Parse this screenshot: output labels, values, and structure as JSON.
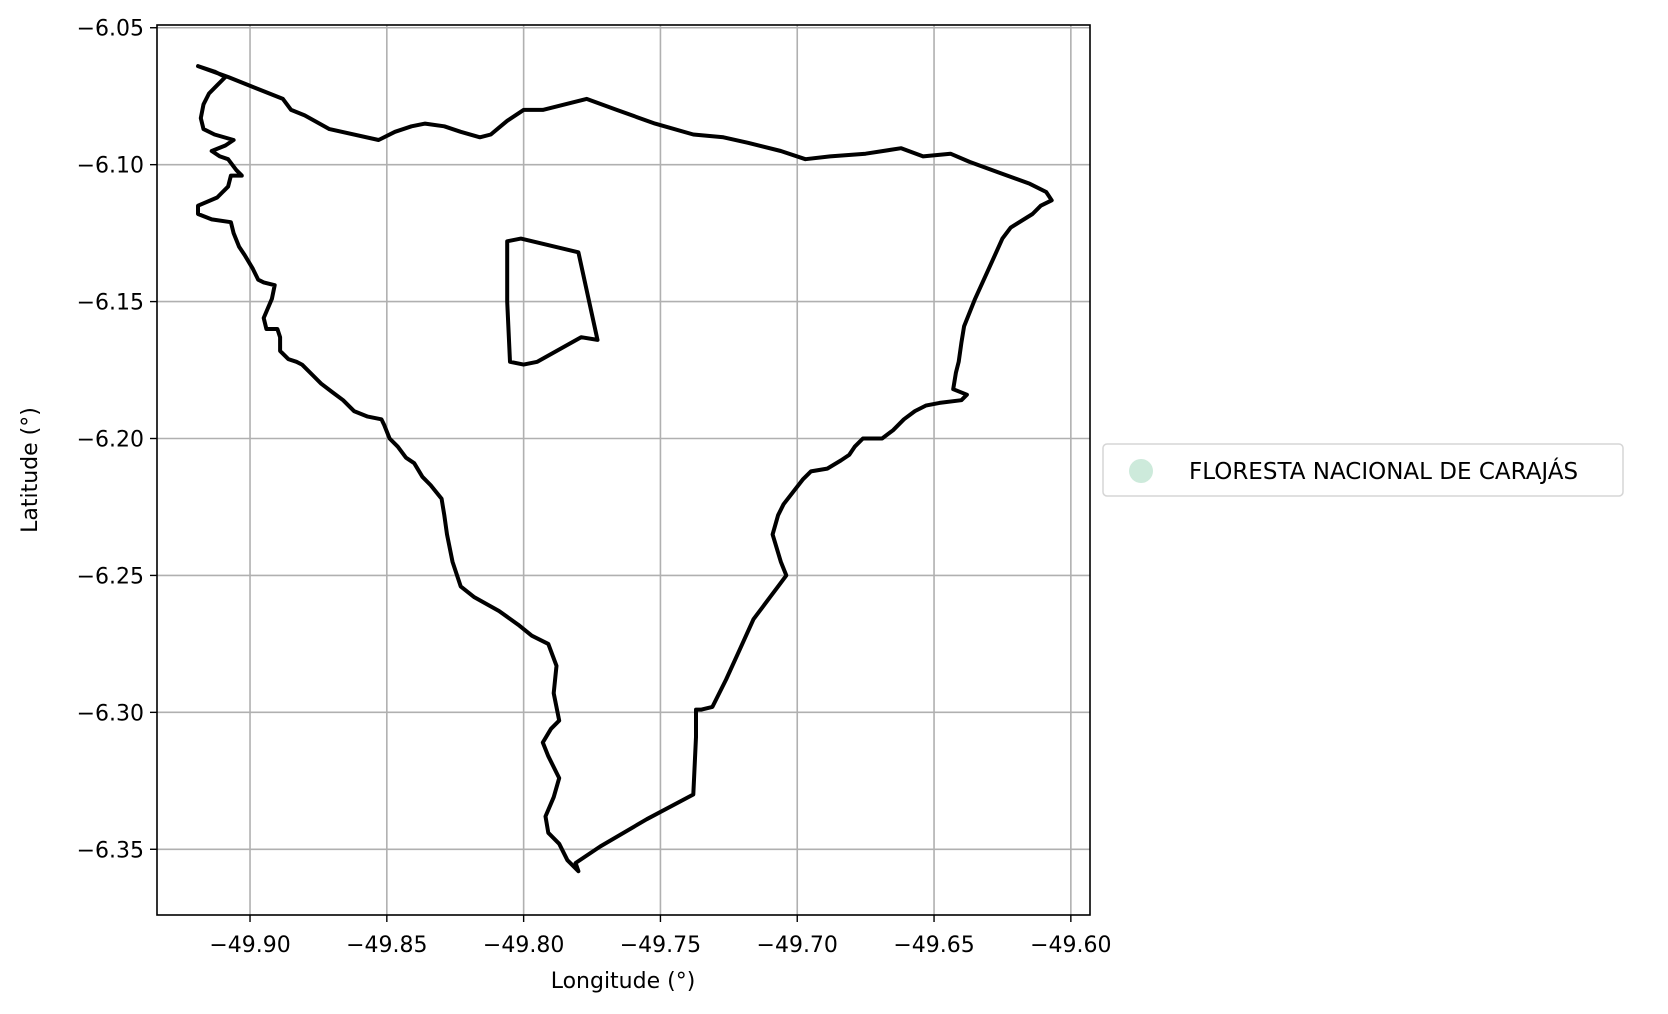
{
  "chart_data": {
    "type": "map",
    "xlabel": "Longitude (°)",
    "ylabel": "Latitude (°)",
    "xlim": [
      -49.934,
      -49.593
    ],
    "ylim": [
      -6.374,
      -6.049
    ],
    "grid": true,
    "x_ticks": [
      -49.9,
      -49.85,
      -49.8,
      -49.75,
      -49.7,
      -49.65,
      -49.6
    ],
    "y_ticks": [
      -6.05,
      -6.1,
      -6.15,
      -6.2,
      -6.25,
      -6.3,
      -6.35
    ],
    "x_tick_labels": [
      "−49.90",
      "−49.85",
      "−49.80",
      "−49.75",
      "−49.70",
      "−49.65",
      "−49.60"
    ],
    "y_tick_labels": [
      "−6.05",
      "−6.10",
      "−6.15",
      "−6.20",
      "−6.25",
      "−6.30",
      "−6.35"
    ],
    "legend": {
      "placement": "right",
      "entries": [
        {
          "label": "FLORESTA NACIONAL DE CARAJÁS",
          "color": "#cdeadb"
        }
      ]
    },
    "outline_color": "#000000",
    "features": [
      {
        "name": "FLORESTA NACIONAL DE CARAJÁS",
        "outer": [
          [
            -49.919,
            -6.064
          ],
          [
            -49.908,
            -6.068
          ],
          [
            -49.898,
            -6.072
          ],
          [
            -49.888,
            -6.076
          ],
          [
            -49.885,
            -6.08
          ],
          [
            -49.88,
            -6.082
          ],
          [
            -49.871,
            -6.087
          ],
          [
            -49.853,
            -6.091
          ],
          [
            -49.847,
            -6.088
          ],
          [
            -49.841,
            -6.086
          ],
          [
            -49.836,
            -6.085
          ],
          [
            -49.829,
            -6.086
          ],
          [
            -49.823,
            -6.088
          ],
          [
            -49.816,
            -6.09
          ],
          [
            -49.812,
            -6.089
          ],
          [
            -49.806,
            -6.084
          ],
          [
            -49.8,
            -6.08
          ],
          [
            -49.793,
            -6.08
          ],
          [
            -49.785,
            -6.078
          ],
          [
            -49.777,
            -6.076
          ],
          [
            -49.766,
            -6.08
          ],
          [
            -49.752,
            -6.085
          ],
          [
            -49.738,
            -6.089
          ],
          [
            -49.727,
            -6.09
          ],
          [
            -49.718,
            -6.092
          ],
          [
            -49.706,
            -6.095
          ],
          [
            -49.697,
            -6.098
          ],
          [
            -49.688,
            -6.097
          ],
          [
            -49.675,
            -6.096
          ],
          [
            -49.662,
            -6.094
          ],
          [
            -49.654,
            -6.097
          ],
          [
            -49.644,
            -6.096
          ],
          [
            -49.637,
            -6.099
          ],
          [
            -49.626,
            -6.103
          ],
          [
            -49.615,
            -6.107
          ],
          [
            -49.609,
            -6.11
          ],
          [
            -49.607,
            -6.113
          ],
          [
            -49.611,
            -6.115
          ],
          [
            -49.614,
            -6.118
          ],
          [
            -49.622,
            -6.123
          ],
          [
            -49.625,
            -6.127
          ],
          [
            -49.63,
            -6.138
          ],
          [
            -49.635,
            -6.149
          ],
          [
            -49.639,
            -6.159
          ],
          [
            -49.64,
            -6.165
          ],
          [
            -49.641,
            -6.172
          ],
          [
            -49.642,
            -6.176
          ],
          [
            -49.643,
            -6.182
          ],
          [
            -49.638,
            -6.184
          ],
          [
            -49.64,
            -6.186
          ],
          [
            -49.648,
            -6.187
          ],
          [
            -49.653,
            -6.188
          ],
          [
            -49.657,
            -6.19
          ],
          [
            -49.661,
            -6.193
          ],
          [
            -49.665,
            -6.197
          ],
          [
            -49.669,
            -6.2
          ],
          [
            -49.676,
            -6.2
          ],
          [
            -49.679,
            -6.203
          ],
          [
            -49.681,
            -6.206
          ],
          [
            -49.684,
            -6.208
          ],
          [
            -49.689,
            -6.211
          ],
          [
            -49.695,
            -6.212
          ],
          [
            -49.698,
            -6.215
          ],
          [
            -49.705,
            -6.224
          ],
          [
            -49.707,
            -6.228
          ],
          [
            -49.709,
            -6.235
          ],
          [
            -49.706,
            -6.245
          ],
          [
            -49.704,
            -6.25
          ],
          [
            -49.707,
            -6.254
          ],
          [
            -49.71,
            -6.258
          ],
          [
            -49.713,
            -6.262
          ],
          [
            -49.716,
            -6.266
          ],
          [
            -49.721,
            -6.277
          ],
          [
            -49.726,
            -6.288
          ],
          [
            -49.731,
            -6.298
          ],
          [
            -49.735,
            -6.299
          ],
          [
            -49.737,
            -6.299
          ],
          [
            -49.737,
            -6.309
          ],
          [
            -49.738,
            -6.33
          ],
          [
            -49.755,
            -6.339
          ],
          [
            -49.772,
            -6.349
          ],
          [
            -49.781,
            -6.355
          ],
          [
            -49.78,
            -6.358
          ],
          [
            -49.784,
            -6.354
          ],
          [
            -49.787,
            -6.348
          ],
          [
            -49.791,
            -6.344
          ],
          [
            -49.792,
            -6.338
          ],
          [
            -49.789,
            -6.331
          ],
          [
            -49.787,
            -6.324
          ],
          [
            -49.791,
            -6.316
          ],
          [
            -49.793,
            -6.311
          ],
          [
            -49.79,
            -6.306
          ],
          [
            -49.787,
            -6.303
          ],
          [
            -49.789,
            -6.293
          ],
          [
            -49.788,
            -6.283
          ],
          [
            -49.791,
            -6.275
          ],
          [
            -49.797,
            -6.272
          ],
          [
            -49.802,
            -6.268
          ],
          [
            -49.809,
            -6.263
          ],
          [
            -49.818,
            -6.258
          ],
          [
            -49.823,
            -6.254
          ],
          [
            -49.826,
            -6.245
          ],
          [
            -49.828,
            -6.235
          ],
          [
            -49.829,
            -6.228
          ],
          [
            -49.83,
            -6.222
          ],
          [
            -49.834,
            -6.217
          ],
          [
            -49.837,
            -6.214
          ],
          [
            -49.84,
            -6.209
          ],
          [
            -49.843,
            -6.207
          ],
          [
            -49.846,
            -6.203
          ],
          [
            -49.849,
            -6.2
          ],
          [
            -49.851,
            -6.195
          ],
          [
            -49.852,
            -6.193
          ],
          [
            -49.857,
            -6.192
          ],
          [
            -49.862,
            -6.19
          ],
          [
            -49.866,
            -6.186
          ],
          [
            -49.87,
            -6.183
          ],
          [
            -49.874,
            -6.18
          ],
          [
            -49.877,
            -6.177
          ],
          [
            -49.881,
            -6.173
          ],
          [
            -49.883,
            -6.172
          ],
          [
            -49.886,
            -6.171
          ],
          [
            -49.889,
            -6.168
          ],
          [
            -49.889,
            -6.163
          ],
          [
            -49.89,
            -6.16
          ],
          [
            -49.894,
            -6.16
          ],
          [
            -49.895,
            -6.156
          ],
          [
            -49.892,
            -6.149
          ],
          [
            -49.891,
            -6.144
          ],
          [
            -49.895,
            -6.143
          ],
          [
            -49.897,
            -6.142
          ],
          [
            -49.899,
            -6.138
          ],
          [
            -49.902,
            -6.133
          ],
          [
            -49.904,
            -6.13
          ],
          [
            -49.906,
            -6.125
          ],
          [
            -49.907,
            -6.121
          ],
          [
            -49.914,
            -6.12
          ],
          [
            -49.919,
            -6.118
          ],
          [
            -49.919,
            -6.115
          ],
          [
            -49.912,
            -6.112
          ],
          [
            -49.908,
            -6.108
          ],
          [
            -49.907,
            -6.104
          ],
          [
            -49.903,
            -6.104
          ],
          [
            -49.905,
            -6.102
          ],
          [
            -49.908,
            -6.098
          ],
          [
            -49.911,
            -6.097
          ],
          [
            -49.914,
            -6.095
          ],
          [
            -49.909,
            -6.093
          ],
          [
            -49.906,
            -6.091
          ],
          [
            -49.913,
            -6.089
          ],
          [
            -49.917,
            -6.087
          ],
          [
            -49.918,
            -6.083
          ],
          [
            -49.917,
            -6.078
          ],
          [
            -49.915,
            -6.074
          ],
          [
            -49.912,
            -6.071
          ],
          [
            -49.909,
            -6.068
          ],
          [
            -49.913,
            -6.066
          ],
          [
            -49.919,
            -6.064
          ]
        ],
        "hole": [
          [
            -49.806,
            -6.128
          ],
          [
            -49.801,
            -6.127
          ],
          [
            -49.78,
            -6.132
          ],
          [
            -49.773,
            -6.164
          ],
          [
            -49.779,
            -6.163
          ],
          [
            -49.795,
            -6.172
          ],
          [
            -49.8,
            -6.173
          ],
          [
            -49.805,
            -6.172
          ],
          [
            -49.806,
            -6.15
          ],
          [
            -49.806,
            -6.128
          ]
        ]
      }
    ]
  }
}
